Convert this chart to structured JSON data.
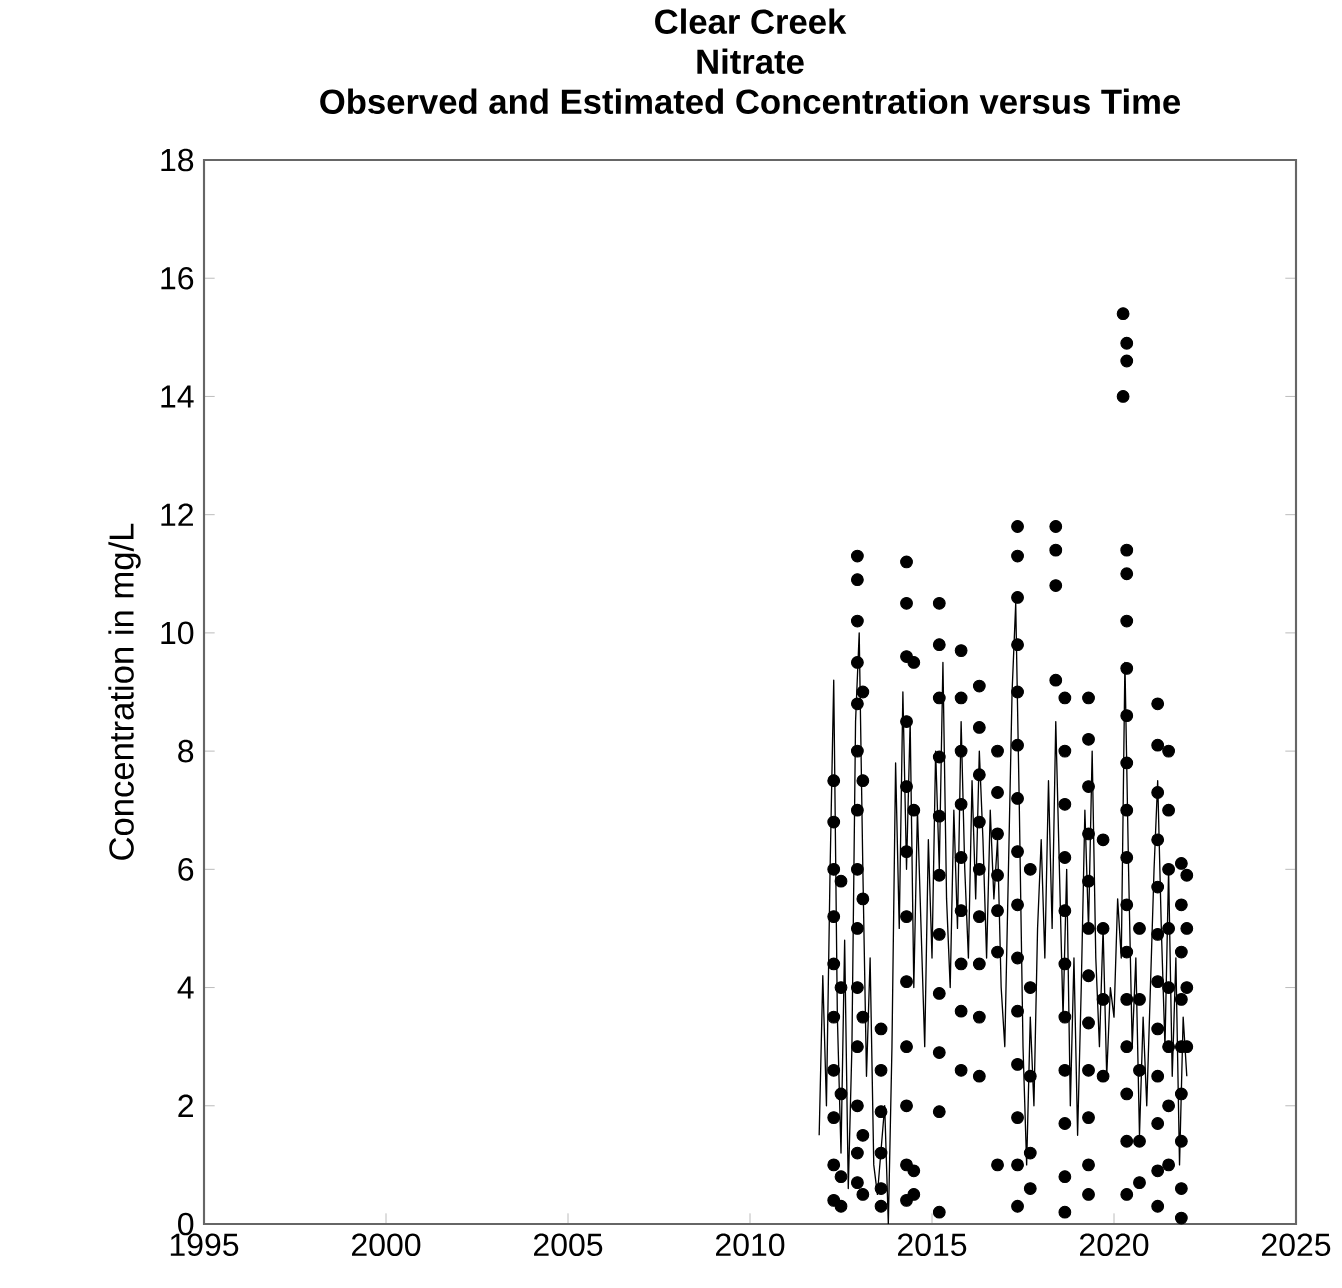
{
  "chart_data": {
    "type": "scatter",
    "title": "Clear Creek",
    "subtitle": "Nitrate",
    "annotations": [
      "Observed and Estimated Concentration versus Time"
    ],
    "ylabel": "Concentration in mg/L",
    "xlim": [
      1995,
      2025
    ],
    "xticks": [
      1995,
      2000,
      2005,
      2010,
      2015,
      2020,
      2025
    ],
    "ylim": [
      0,
      18
    ],
    "yticks": [
      0,
      2,
      4,
      6,
      8,
      10,
      12,
      14,
      16,
      18
    ],
    "grid": false,
    "series": [
      {
        "type": "line",
        "color": "#000000",
        "marker": "none",
        "line_style": "solid",
        "x": [
          2011.9,
          2012.0,
          2012.1,
          2012.2,
          2012.3,
          2012.4,
          2012.5,
          2012.6,
          2012.7,
          2012.8,
          2012.9,
          2013.0,
          2013.1,
          2013.2,
          2013.3,
          2013.4,
          2013.5,
          2013.7,
          2013.8,
          2013.9,
          2014.0,
          2014.1,
          2014.2,
          2014.3,
          2014.4,
          2014.5,
          2014.6,
          2014.7,
          2014.8,
          2014.9,
          2015.0,
          2015.1,
          2015.2,
          2015.3,
          2015.4,
          2015.5,
          2015.6,
          2015.7,
          2015.8,
          2015.9,
          2016.0,
          2016.1,
          2016.2,
          2016.3,
          2016.4,
          2016.5,
          2016.6,
          2016.7,
          2016.8,
          2016.9,
          2017.0,
          2017.1,
          2017.2,
          2017.3,
          2017.4,
          2017.5,
          2017.6,
          2017.7,
          2017.8,
          2017.9,
          2018.0,
          2018.1,
          2018.2,
          2018.3,
          2018.4,
          2018.5,
          2018.6,
          2018.7,
          2018.8,
          2018.9,
          2019.0,
          2019.1,
          2019.2,
          2019.3,
          2019.4,
          2019.5,
          2019.6,
          2019.7,
          2019.8,
          2019.9,
          2020.0,
          2020.1,
          2020.2,
          2020.3,
          2020.4,
          2020.5,
          2020.6,
          2020.7,
          2020.8,
          2020.9,
          2021.0,
          2021.1,
          2021.2,
          2021.3,
          2021.4,
          2021.5,
          2021.6,
          2021.7,
          2021.8,
          2021.9,
          2022.0
        ],
        "values": [
          1.5,
          4.2,
          2.0,
          6.0,
          9.2,
          3.5,
          1.2,
          4.8,
          0.6,
          3.0,
          8.5,
          10.0,
          6.0,
          2.5,
          4.5,
          1.0,
          0.5,
          2.0,
          0.0,
          3.0,
          7.8,
          5.0,
          9.0,
          6.0,
          8.5,
          4.0,
          7.0,
          5.0,
          3.0,
          6.5,
          4.5,
          8.0,
          6.0,
          9.5,
          5.5,
          4.0,
          7.0,
          5.0,
          8.5,
          6.0,
          4.5,
          7.5,
          5.5,
          8.0,
          6.5,
          4.5,
          7.0,
          5.5,
          6.5,
          4.0,
          3.0,
          6.0,
          9.0,
          10.5,
          7.0,
          3.0,
          1.0,
          3.5,
          2.0,
          5.0,
          6.5,
          4.5,
          7.5,
          5.0,
          8.5,
          6.0,
          3.5,
          6.0,
          2.0,
          4.5,
          1.5,
          4.0,
          7.0,
          5.0,
          8.0,
          4.5,
          3.0,
          5.0,
          2.5,
          4.0,
          3.5,
          5.5,
          4.5,
          9.5,
          6.0,
          3.0,
          4.5,
          1.5,
          3.5,
          2.0,
          4.0,
          6.0,
          7.5,
          5.0,
          3.0,
          6.0,
          2.5,
          4.5,
          1.0,
          3.5,
          2.5
        ]
      },
      {
        "color": "#000000",
        "marker": "circle",
        "x": [
          2012.3,
          2012.3,
          2012.3,
          2012.3,
          2012.3,
          2012.3,
          2012.3,
          2012.3,
          2012.3,
          2012.3,
          2012.5,
          2012.5,
          2012.5,
          2012.5,
          2012.5,
          2012.95,
          2012.95,
          2012.95,
          2012.95,
          2012.95,
          2012.95,
          2012.95,
          2012.95,
          2012.95,
          2012.95,
          2012.95,
          2012.95,
          2012.95,
          2012.95,
          2013.1,
          2013.1,
          2013.1,
          2013.1,
          2013.1,
          2013.1,
          2013.6,
          2013.6,
          2013.6,
          2013.6,
          2013.6,
          2013.6,
          2014.3,
          2014.3,
          2014.3,
          2014.3,
          2014.3,
          2014.3,
          2014.3,
          2014.3,
          2014.3,
          2014.3,
          2014.3,
          2014.3,
          2014.5,
          2014.5,
          2014.5,
          2014.5,
          2015.2,
          2015.2,
          2015.2,
          2015.2,
          2015.2,
          2015.2,
          2015.2,
          2015.2,
          2015.2,
          2015.2,
          2015.2,
          2015.8,
          2015.8,
          2015.8,
          2015.8,
          2015.8,
          2015.8,
          2015.8,
          2015.8,
          2015.8,
          2016.3,
          2016.3,
          2016.3,
          2016.3,
          2016.3,
          2016.3,
          2016.3,
          2016.3,
          2016.3,
          2016.8,
          2016.8,
          2016.8,
          2016.8,
          2016.8,
          2016.8,
          2016.8,
          2017.35,
          2017.35,
          2017.35,
          2017.35,
          2017.35,
          2017.35,
          2017.35,
          2017.35,
          2017.35,
          2017.35,
          2017.35,
          2017.35,
          2017.35,
          2017.35,
          2017.35,
          2017.7,
          2017.7,
          2017.7,
          2017.7,
          2017.7,
          2018.4,
          2018.4,
          2018.4,
          2018.4,
          2018.65,
          2018.65,
          2018.65,
          2018.65,
          2018.65,
          2018.65,
          2018.65,
          2018.65,
          2018.65,
          2018.65,
          2018.65,
          2019.3,
          2019.3,
          2019.3,
          2019.3,
          2019.3,
          2019.3,
          2019.3,
          2019.3,
          2019.3,
          2019.3,
          2019.3,
          2019.3,
          2019.7,
          2019.7,
          2019.7,
          2019.7,
          2020.25,
          2020.25,
          2020.35,
          2020.35,
          2020.35,
          2020.35,
          2020.35,
          2020.35,
          2020.35,
          2020.35,
          2020.35,
          2020.35,
          2020.35,
          2020.35,
          2020.35,
          2020.35,
          2020.35,
          2020.35,
          2020.35,
          2020.7,
          2020.7,
          2020.7,
          2020.7,
          2020.7,
          2021.2,
          2021.2,
          2021.2,
          2021.2,
          2021.2,
          2021.2,
          2021.2,
          2021.2,
          2021.2,
          2021.2,
          2021.2,
          2021.2,
          2021.5,
          2021.5,
          2021.5,
          2021.5,
          2021.5,
          2021.5,
          2021.5,
          2021.5,
          2021.85,
          2021.85,
          2021.85,
          2021.85,
          2021.85,
          2021.85,
          2021.85,
          2021.85,
          2021.85,
          2022.0,
          2022.0,
          2022.0,
          2022.0
        ],
        "values": [
          7.5,
          6.8,
          6.0,
          5.2,
          4.4,
          3.5,
          2.6,
          1.8,
          1.0,
          0.4,
          5.8,
          4.0,
          2.2,
          0.8,
          0.3,
          11.3,
          10.9,
          10.2,
          9.5,
          8.8,
          8.0,
          7.0,
          6.0,
          5.0,
          4.0,
          3.0,
          2.0,
          1.2,
          0.7,
          9.0,
          7.5,
          5.5,
          3.5,
          1.5,
          0.5,
          3.3,
          2.6,
          1.9,
          1.2,
          0.6,
          0.3,
          11.2,
          10.5,
          9.6,
          8.5,
          7.4,
          6.3,
          5.2,
          4.1,
          3.0,
          2.0,
          1.0,
          0.4,
          9.5,
          7.0,
          0.9,
          0.5,
          10.5,
          9.8,
          8.9,
          7.9,
          6.9,
          5.9,
          4.9,
          3.9,
          2.9,
          1.9,
          0.2,
          9.7,
          8.9,
          8.0,
          7.1,
          6.2,
          5.3,
          4.4,
          3.6,
          2.6,
          9.1,
          8.4,
          7.6,
          6.8,
          6.0,
          5.2,
          4.4,
          3.5,
          2.5,
          8.0,
          7.3,
          6.6,
          5.9,
          5.3,
          4.6,
          1.0,
          11.8,
          11.3,
          10.6,
          9.8,
          9.0,
          8.1,
          7.2,
          6.3,
          5.4,
          4.5,
          3.6,
          2.7,
          1.8,
          1.0,
          0.3,
          6.0,
          4.0,
          2.5,
          1.2,
          0.6,
          11.8,
          11.4,
          10.8,
          9.2,
          8.9,
          8.0,
          7.1,
          6.2,
          5.3,
          4.4,
          3.5,
          2.6,
          1.7,
          0.8,
          0.2,
          8.9,
          8.2,
          7.4,
          6.6,
          5.8,
          5.0,
          4.2,
          3.4,
          2.6,
          1.8,
          1.0,
          0.5,
          6.5,
          5.0,
          3.8,
          2.5,
          15.4,
          14.0,
          14.9,
          14.6,
          11.4,
          11.0,
          10.2,
          9.4,
          8.6,
          7.8,
          7.0,
          6.2,
          5.4,
          4.6,
          3.8,
          3.0,
          2.2,
          1.4,
          0.5,
          5.0,
          3.8,
          2.6,
          1.4,
          0.7,
          8.8,
          8.1,
          7.3,
          6.5,
          5.7,
          4.9,
          4.1,
          3.3,
          2.5,
          1.7,
          0.9,
          0.3,
          8.0,
          7.0,
          6.0,
          5.0,
          4.0,
          3.0,
          2.0,
          1.0,
          6.1,
          5.4,
          4.6,
          3.8,
          3.0,
          2.2,
          1.4,
          0.6,
          0.1,
          5.9,
          5.0,
          4.0,
          3.0
        ]
      }
    ]
  }
}
